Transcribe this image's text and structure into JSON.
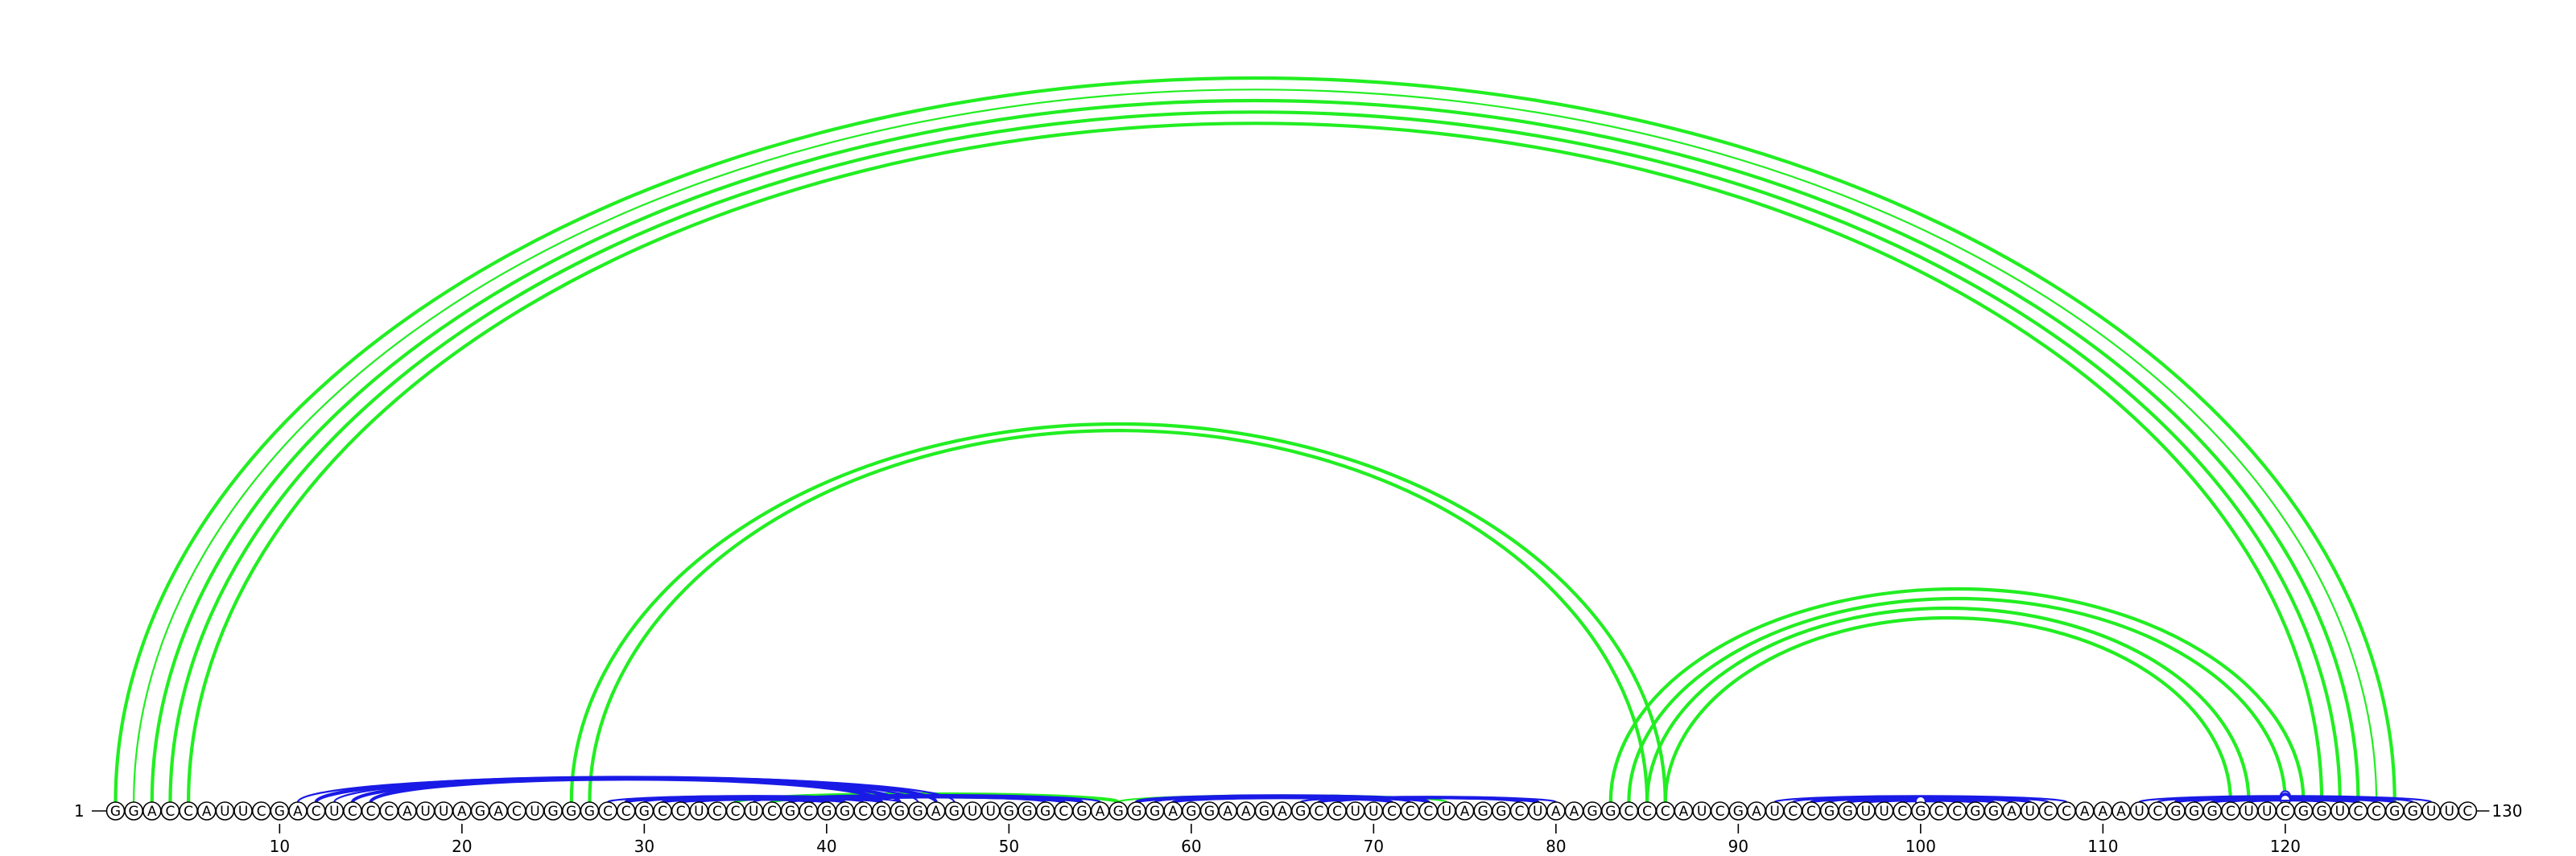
{
  "sequence": "GGACCAUUCGACUCCCAUUAGACUGGGCCGCCUCCUCGCGGCGGGAGUUGGGCGAGGGAGGAAGAGCCUUCCCUAGGCUAAGGCCCAUCGAUCCGGUUCGCCGGAUCCAAAUCGGGCUUCGGUCCGGUUC",
  "start_label": "1",
  "end_label": "130",
  "ticks": [
    "10",
    "20",
    "30",
    "40",
    "50",
    "60",
    "70",
    "80",
    "90",
    "100",
    "110",
    "120"
  ],
  "colors": {
    "green": "#22ee22",
    "blue": "#1a1ae6"
  },
  "arcs": [
    {
      "i": 1,
      "j": 126,
      "color": "green",
      "weight": "bold"
    },
    {
      "i": 2,
      "j": 125,
      "color": "green",
      "weight": "normal"
    },
    {
      "i": 3,
      "j": 124,
      "color": "green",
      "weight": "bold"
    },
    {
      "i": 4,
      "j": 123,
      "color": "green",
      "weight": "bold"
    },
    {
      "i": 5,
      "j": 122,
      "color": "green",
      "weight": "bold"
    },
    {
      "i": 26,
      "j": 86,
      "color": "green",
      "weight": "bold"
    },
    {
      "i": 27,
      "j": 85,
      "color": "green",
      "weight": "bold"
    },
    {
      "i": 83,
      "j": 121,
      "color": "green",
      "weight": "bold"
    },
    {
      "i": 84,
      "j": 120,
      "color": "green",
      "weight": "bold"
    },
    {
      "i": 85,
      "j": 118,
      "color": "green",
      "weight": "bold"
    },
    {
      "i": 86,
      "j": 117,
      "color": "green",
      "weight": "bold"
    },
    {
      "i": 35,
      "j": 56,
      "color": "green",
      "weight": "bold"
    },
    {
      "i": 37,
      "j": 54,
      "color": "green",
      "weight": "bold"
    },
    {
      "i": 39,
      "j": 53,
      "color": "green",
      "weight": "bold"
    },
    {
      "i": 56,
      "j": 74,
      "color": "green",
      "weight": "normal"
    },
    {
      "i": 11,
      "j": 47,
      "color": "blue",
      "weight": "normal"
    },
    {
      "i": 12,
      "j": 46,
      "color": "blue",
      "weight": "bold"
    },
    {
      "i": 13,
      "j": 45,
      "color": "blue",
      "weight": "normal"
    },
    {
      "i": 14,
      "j": 44,
      "color": "blue",
      "weight": "bold"
    },
    {
      "i": 15,
      "j": 43,
      "color": "blue",
      "weight": "bold"
    },
    {
      "i": 28,
      "j": 44,
      "color": "blue",
      "weight": "normal"
    },
    {
      "i": 29,
      "j": 43,
      "color": "blue",
      "weight": "bold"
    },
    {
      "i": 30,
      "j": 42,
      "color": "blue",
      "weight": "normal"
    },
    {
      "i": 31,
      "j": 41,
      "color": "blue",
      "weight": "bold"
    },
    {
      "i": 32,
      "j": 40,
      "color": "blue",
      "weight": "bold"
    },
    {
      "i": 33,
      "j": 39,
      "color": "blue",
      "weight": "normal"
    },
    {
      "i": 36,
      "j": 55,
      "color": "blue",
      "weight": "normal"
    },
    {
      "i": 38,
      "j": 54,
      "color": "blue",
      "weight": "bold"
    },
    {
      "i": 39,
      "j": 53,
      "color": "blue",
      "weight": "bold"
    },
    {
      "i": 40,
      "j": 52,
      "color": "blue",
      "weight": "normal"
    },
    {
      "i": 57,
      "j": 73,
      "color": "blue",
      "weight": "bold"
    },
    {
      "i": 58,
      "j": 72,
      "color": "blue",
      "weight": "normal"
    },
    {
      "i": 59,
      "j": 71,
      "color": "blue",
      "weight": "bold"
    },
    {
      "i": 66,
      "j": 80,
      "color": "blue",
      "weight": "normal"
    },
    {
      "i": 67,
      "j": 79,
      "color": "blue",
      "weight": "bold"
    },
    {
      "i": 68,
      "j": 78,
      "color": "blue",
      "weight": "normal"
    },
    {
      "i": 92,
      "j": 108,
      "color": "blue",
      "weight": "normal"
    },
    {
      "i": 93,
      "j": 107,
      "color": "blue",
      "weight": "normal"
    },
    {
      "i": 94,
      "j": 106,
      "color": "blue",
      "weight": "bold"
    },
    {
      "i": 95,
      "j": 105,
      "color": "blue",
      "weight": "normal"
    },
    {
      "i": 96,
      "j": 104,
      "color": "blue",
      "weight": "bold"
    },
    {
      "i": 97,
      "j": 103,
      "color": "blue",
      "weight": "bold"
    },
    {
      "i": 98,
      "j": 102,
      "color": "blue",
      "weight": "normal"
    },
    {
      "i": 99,
      "j": 101,
      "color": "blue",
      "weight": "normal",
      "marker": true
    },
    {
      "i": 112,
      "j": 128,
      "color": "blue",
      "weight": "normal",
      "marker": true
    },
    {
      "i": 113,
      "j": 127,
      "color": "blue",
      "weight": "normal"
    },
    {
      "i": 114,
      "j": 126,
      "color": "blue",
      "weight": "bold"
    },
    {
      "i": 115,
      "j": 125,
      "color": "blue",
      "weight": "normal",
      "marker": true
    },
    {
      "i": 116,
      "j": 124,
      "color": "blue",
      "weight": "bold"
    },
    {
      "i": 117,
      "j": 123,
      "color": "blue",
      "weight": "normal",
      "marker": true
    },
    {
      "i": 118,
      "j": 122,
      "color": "blue",
      "weight": "normal"
    }
  ]
}
